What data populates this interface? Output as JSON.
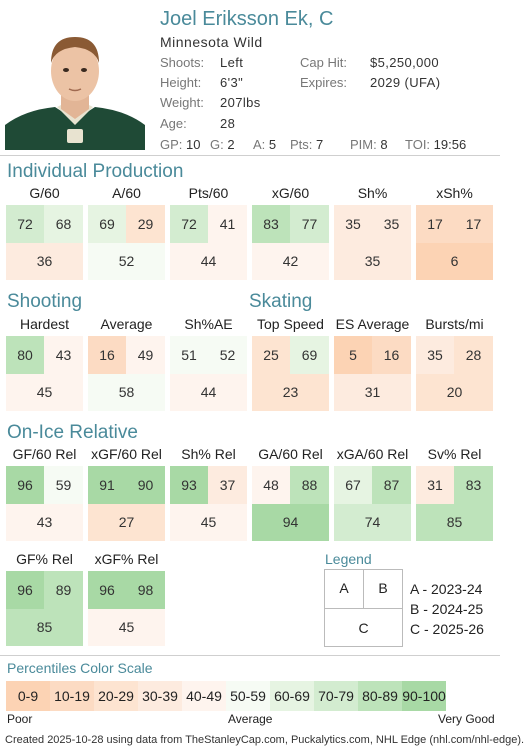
{
  "player": {
    "name": "Joel Eriksson Ek, C",
    "team": "Minnesota Wild",
    "shoots_label": "Shoots:",
    "shoots": "Left",
    "height_label": "Height:",
    "height": "6'3\"",
    "weight_label": "Weight:",
    "weight": "207lbs",
    "age_label": "Age:",
    "age": "28",
    "caphit_label": "Cap Hit:",
    "caphit": "$5,250,000",
    "expires_label": "Expires:",
    "expires": "2029 (UFA)"
  },
  "statline": [
    {
      "k": "GP:",
      "v": "10"
    },
    {
      "k": "G:",
      "v": "2"
    },
    {
      "k": "A:",
      "v": "5"
    },
    {
      "k": "Pts:",
      "v": "7"
    },
    {
      "k": "PIM:",
      "v": "8"
    },
    {
      "k": "TOI:",
      "v": "19:56"
    }
  ],
  "sections": {
    "individual": "Individual Production",
    "shooting": "Shooting",
    "skating": "Skating",
    "onice": "On-Ice Relative",
    "legend": "Legend",
    "scale": "Percentiles Color Scale"
  },
  "groups": [
    {
      "id": "g60",
      "label": "G/60",
      "a": 72,
      "b": 68,
      "c": 36
    },
    {
      "id": "a60",
      "label": "A/60",
      "a": 69,
      "b": 29,
      "c": 52
    },
    {
      "id": "pts60",
      "label": "Pts/60",
      "a": 72,
      "b": 41,
      "c": 44
    },
    {
      "id": "xg60",
      "label": "xG/60",
      "a": 83,
      "b": 77,
      "c": 42
    },
    {
      "id": "shp",
      "label": "Sh%",
      "a": 35,
      "b": 35,
      "c": 35
    },
    {
      "id": "xshp",
      "label": "xSh%",
      "a": 17,
      "b": 17,
      "c": 6
    },
    {
      "id": "hardest",
      "label": "Hardest",
      "a": 80,
      "b": 43,
      "c": 45
    },
    {
      "id": "average",
      "label": "Average",
      "a": 16,
      "b": 49,
      "c": 58
    },
    {
      "id": "shae",
      "label": "Sh%AE",
      "a": 51,
      "b": 52,
      "c": 44
    },
    {
      "id": "topspeed",
      "label": "Top Speed",
      "a": 25,
      "b": 69,
      "c": 23
    },
    {
      "id": "esavg",
      "label": "ES Average",
      "a": 5,
      "b": 16,
      "c": 31
    },
    {
      "id": "bursts",
      "label": "Bursts/mi",
      "a": 35,
      "b": 28,
      "c": 20
    },
    {
      "id": "gf60",
      "label": "GF/60 Rel",
      "a": 96,
      "b": 59,
      "c": 43
    },
    {
      "id": "xgf60",
      "label": "xGF/60 Rel",
      "a": 91,
      "b": 90,
      "c": 27
    },
    {
      "id": "shrel",
      "label": "Sh% Rel",
      "a": 93,
      "b": 37,
      "c": 45
    },
    {
      "id": "ga60",
      "label": "GA/60 Rel",
      "a": 48,
      "b": 88,
      "c": 94
    },
    {
      "id": "xga60",
      "label": "xGA/60 Rel",
      "a": 67,
      "b": 87,
      "c": 74
    },
    {
      "id": "svrel",
      "label": "Sv% Rel",
      "a": 31,
      "b": 83,
      "c": 85
    },
    {
      "id": "gfp",
      "label": "GF% Rel",
      "a": 96,
      "b": 89,
      "c": 85
    },
    {
      "id": "xgfp",
      "label": "xGF% Rel",
      "a": 96,
      "b": 98,
      "c": 45
    }
  ],
  "legend": {
    "a": "A",
    "b": "B",
    "c": "C",
    "a_text": "A - 2023-24",
    "b_text": "B - 2024-25",
    "c_text": "C - 2025-26"
  },
  "scale": {
    "cells": [
      {
        "label": "0-9",
        "color": "#fcd3b4"
      },
      {
        "label": "10-19",
        "color": "#fcdbc3"
      },
      {
        "label": "20-29",
        "color": "#fde4d1"
      },
      {
        "label": "30-39",
        "color": "#fdebdf"
      },
      {
        "label": "40-49",
        "color": "#fef4ee"
      },
      {
        "label": "50-59",
        "color": "#f6fbf4"
      },
      {
        "label": "60-69",
        "color": "#e6f4e2"
      },
      {
        "label": "70-79",
        "color": "#d3ecd0"
      },
      {
        "label": "80-89",
        "color": "#bde3ba"
      },
      {
        "label": "90-100",
        "color": "#a8d9a5"
      }
    ],
    "poor": "Poor",
    "average": "Average",
    "good": "Very Good"
  },
  "footer": "Created 2025-10-28 using data from TheStanleyCap.com, Puckalytics.com, NHL Edge (nhl.com/nhl-edge)."
}
